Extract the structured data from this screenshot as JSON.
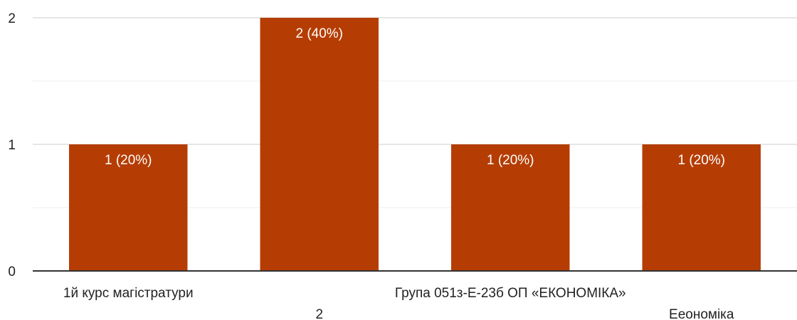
{
  "chart_data": {
    "type": "bar",
    "categories": [
      "1й курс магістратури",
      "2",
      "Група 051з-Е-23б ОП «ЕКОНОМІКА»",
      "Еeономіка"
    ],
    "values": [
      1,
      2,
      1,
      1
    ],
    "data_labels": [
      "1 (20%)",
      "2 (40%)",
      "1 (20%)",
      "1 (20%)"
    ],
    "ylim": [
      0,
      2
    ],
    "y_ticks": [
      0,
      1,
      2
    ],
    "grid": true,
    "bar_color": "#b53d04",
    "title": "",
    "xlabel": "",
    "ylabel": ""
  }
}
